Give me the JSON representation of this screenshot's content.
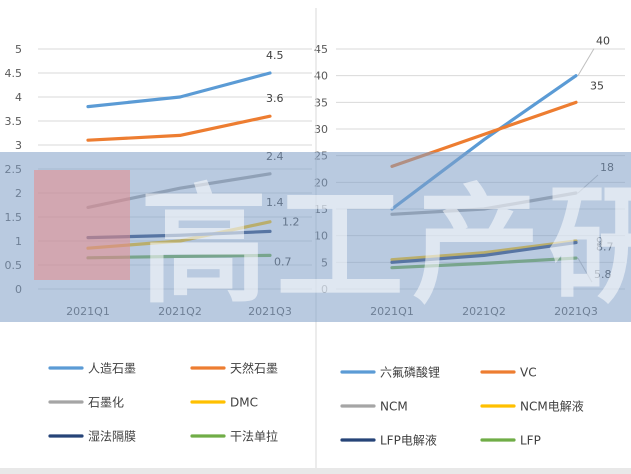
{
  "watermark": {
    "logo_text": "高工产研",
    "band_color": "#7f9fc6",
    "logo_color": "#e88a8a"
  },
  "chart_data": [
    {
      "type": "line",
      "title": "",
      "xlabel": "",
      "ylabel": "",
      "categories": [
        "2021Q1",
        "2021Q2",
        "2021Q3"
      ],
      "ylim": [
        0,
        5
      ],
      "yticks": [
        "0",
        "0.5",
        "1",
        "1.5",
        "2",
        "2.5",
        "3",
        "3.5",
        "4",
        "4.5",
        "5"
      ],
      "legend_position": "bottom",
      "series": [
        {
          "name": "人造石墨",
          "values": [
            3.8,
            4.0,
            4.5
          ],
          "color": "#5b9bd5",
          "end_label": "4.5"
        },
        {
          "name": "天然石墨",
          "values": [
            3.1,
            3.2,
            3.6
          ],
          "color": "#ed7d31",
          "end_label": "3.6"
        },
        {
          "name": "石墨化",
          "values": [
            1.7,
            2.1,
            2.4
          ],
          "color": "#a5a5a5",
          "end_label": "2.4"
        },
        {
          "name": "DMC",
          "values": [
            0.85,
            1.0,
            1.4
          ],
          "color": "#ffc000",
          "end_label": "1.4"
        },
        {
          "name": "湿法隔膜",
          "values": [
            1.07,
            1.12,
            1.2
          ],
          "color": "#264478",
          "end_label": "1.2"
        },
        {
          "name": "干法单拉",
          "values": [
            0.65,
            0.68,
            0.7
          ],
          "color": "#70ad47",
          "end_label": "0.7"
        }
      ]
    },
    {
      "type": "line",
      "title": "",
      "xlabel": "",
      "ylabel": "",
      "categories": [
        "2021Q1",
        "2021Q2",
        "2021Q3"
      ],
      "ylim": [
        0,
        45
      ],
      "yticks": [
        "0",
        "5",
        "10",
        "15",
        "20",
        "25",
        "30",
        "35",
        "40",
        "45"
      ],
      "legend_position": "bottom",
      "series": [
        {
          "name": "六氟磷酸锂",
          "values": [
            15,
            28,
            40
          ],
          "color": "#5b9bd5",
          "end_label": "40"
        },
        {
          "name": "VC",
          "values": [
            23,
            29,
            35
          ],
          "color": "#ed7d31",
          "end_label": "35"
        },
        {
          "name": "NCM",
          "values": [
            14,
            15,
            18
          ],
          "color": "#a5a5a5",
          "end_label": "18"
        },
        {
          "name": "NCM电解液",
          "values": [
            5.5,
            6.8,
            9
          ],
          "color": "#ffc000",
          "end_label": "9"
        },
        {
          "name": "LFP电解液",
          "values": [
            5,
            6.3,
            8.7
          ],
          "color": "#264478",
          "end_label": "8.7"
        },
        {
          "name": "LFP",
          "values": [
            4,
            4.8,
            5.8
          ],
          "color": "#70ad47",
          "end_label": "5.8"
        }
      ]
    }
  ]
}
